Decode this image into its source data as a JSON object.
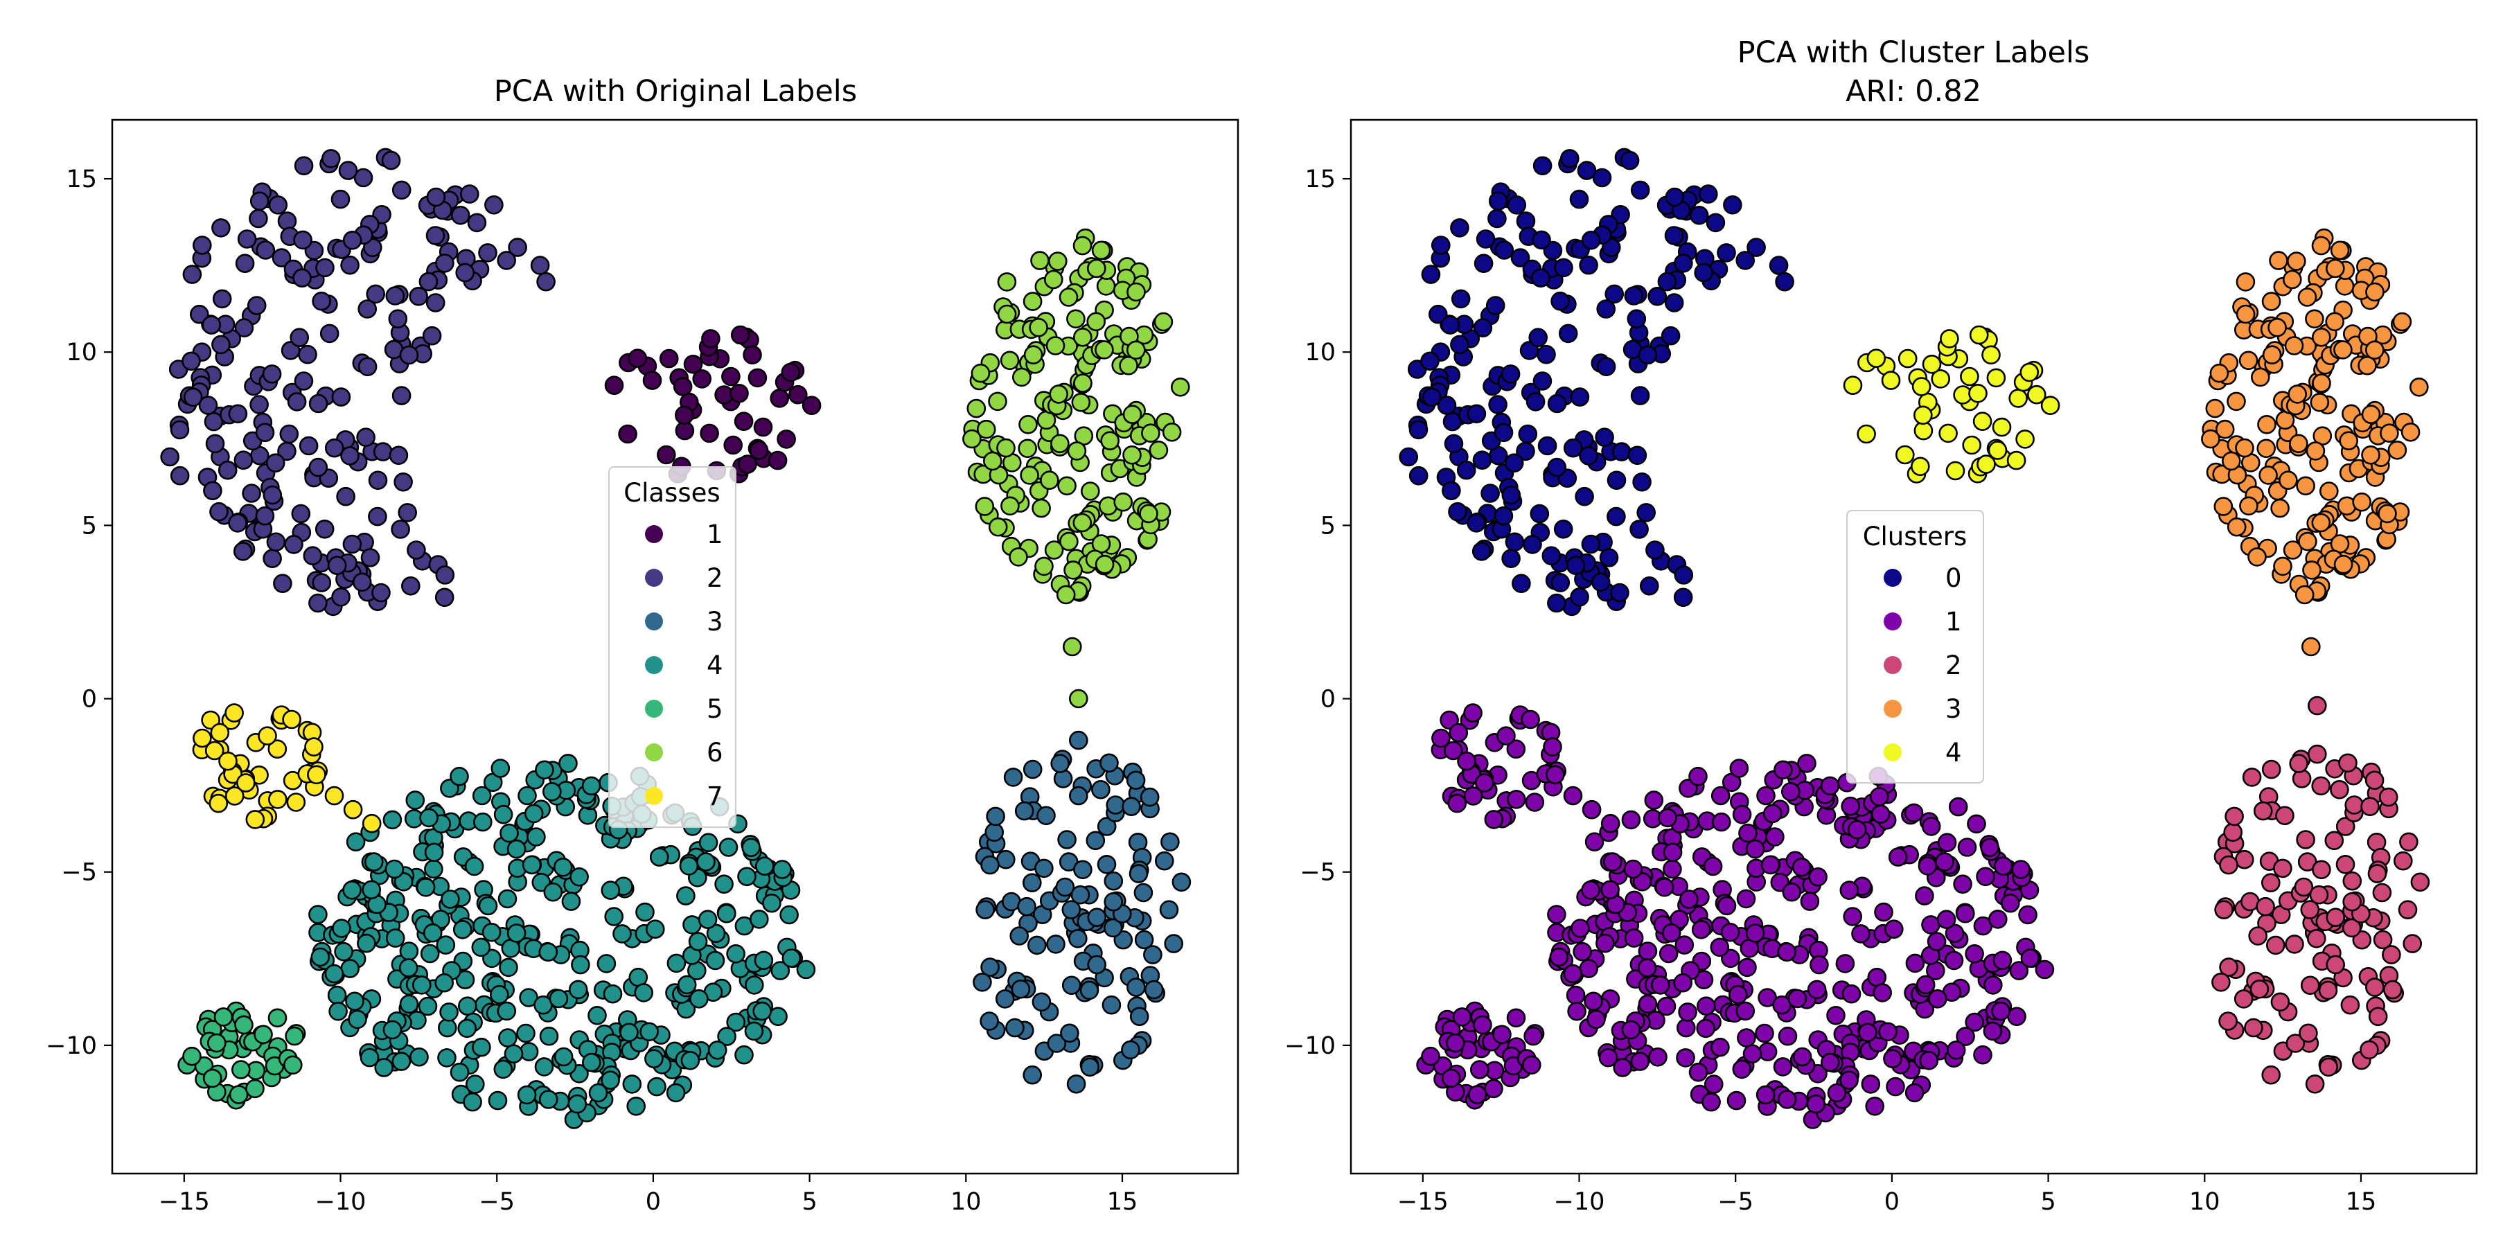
{
  "chart_data": [
    {
      "type": "scatter",
      "title": "PCA with Original Labels",
      "xlabel": "",
      "ylabel": "",
      "xlim": [
        -17.3,
        18.7
      ],
      "ylim": [
        -13.7,
        16.7
      ],
      "xticks": [
        -15,
        -10,
        -5,
        0,
        5,
        10,
        15
      ],
      "yticks": [
        -10,
        -5,
        0,
        5,
        10,
        15
      ],
      "xtick_labels": [
        "−15",
        "−10",
        "−5",
        "0",
        "5",
        "10",
        "15"
      ],
      "ytick_labels": [
        "−10",
        "−5",
        "0",
        "5",
        "10",
        "15"
      ],
      "grid": false,
      "colormap": "viridis",
      "legend": {
        "title": "Classes",
        "placement": "center",
        "entries": [
          {
            "label": "1",
            "color": "#440154"
          },
          {
            "label": "2",
            "color": "#443983"
          },
          {
            "label": "3",
            "color": "#31688e"
          },
          {
            "label": "4",
            "color": "#21918c"
          },
          {
            "label": "5",
            "color": "#35b779"
          },
          {
            "label": "6",
            "color": "#90d743"
          },
          {
            "label": "7",
            "color": "#fde725"
          }
        ]
      },
      "series": [
        {
          "label": "1",
          "color": "#440154",
          "center": [
            1.9,
            8.5
          ],
          "shape": "disk",
          "rx": 3.3,
          "ry": 2.3,
          "count": 50
        },
        {
          "label": "2",
          "color": "#443983",
          "center": [
            -9.0,
            9.0
          ],
          "shape": "crescent",
          "r": 6.8,
          "hole_center": [
            -3.2,
            7.2
          ],
          "hole_r": 4.8,
          "count": 220
        },
        {
          "label": "3",
          "color": "#31688e",
          "center": [
            13.5,
            -6.3
          ],
          "shape": "disk",
          "rx": 3.5,
          "ry": 5.0,
          "count": 130,
          "bridge": [
            [
              13.6,
              -1.2
            ],
            [
              13.6,
              -2.8
            ]
          ]
        },
        {
          "label": "4",
          "color": "#21918c",
          "center": [
            -3.0,
            -7.0
          ],
          "shape": "disk",
          "rx": 8.0,
          "ry": 5.2,
          "count": 420
        },
        {
          "label": "5",
          "color": "#35b779",
          "center": [
            -13.2,
            -10.1
          ],
          "shape": "disk",
          "rx": 1.9,
          "ry": 1.5,
          "count": 45
        },
        {
          "label": "6",
          "color": "#90d743",
          "center": [
            13.5,
            8.2
          ],
          "shape": "disk",
          "rx": 3.4,
          "ry": 5.2,
          "count": 200,
          "bridge": [
            [
              13.2,
              3.0
            ],
            [
              13.4,
              1.5
            ],
            [
              13.6,
              0.0
            ]
          ]
        },
        {
          "label": "7",
          "color": "#fde725",
          "center": [
            -12.8,
            -1.9
          ],
          "shape": "disk",
          "rx": 2.3,
          "ry": 1.7,
          "count": 45,
          "bridge": [
            [
              -10.2,
              -2.8
            ],
            [
              -9.6,
              -3.2
            ],
            [
              -9.0,
              -3.6
            ]
          ]
        }
      ]
    },
    {
      "type": "scatter",
      "title": "PCA with Cluster Labels",
      "subtitle": "ARI: 0.82",
      "xlabel": "",
      "ylabel": "",
      "xlim": [
        -17.3,
        18.7
      ],
      "ylim": [
        -13.7,
        16.7
      ],
      "xticks": [
        -15,
        -10,
        -5,
        0,
        5,
        10,
        15
      ],
      "yticks": [
        -10,
        -5,
        0,
        5,
        10,
        15
      ],
      "xtick_labels": [
        "−15",
        "−10",
        "−5",
        "0",
        "5",
        "10",
        "15"
      ],
      "ytick_labels": [
        "−10",
        "−5",
        "0",
        "5",
        "10",
        "15"
      ],
      "grid": false,
      "colormap": "plasma",
      "legend": {
        "title": "Clusters",
        "placement": "center",
        "entries": [
          {
            "label": "0",
            "color": "#0d0887"
          },
          {
            "label": "1",
            "color": "#7e03a8"
          },
          {
            "label": "2",
            "color": "#cc4778"
          },
          {
            "label": "3",
            "color": "#f89540"
          },
          {
            "label": "4",
            "color": "#f0f921"
          }
        ]
      },
      "series": [
        {
          "label": "4",
          "color": "#f0f921",
          "center": [
            1.9,
            8.5
          ],
          "shape": "disk",
          "rx": 3.3,
          "ry": 2.3,
          "count": 50
        },
        {
          "label": "0",
          "color": "#0d0887",
          "center": [
            -9.0,
            9.0
          ],
          "shape": "crescent",
          "r": 6.8,
          "hole_center": [
            -3.2,
            7.2
          ],
          "hole_r": 4.8,
          "count": 220
        },
        {
          "label": "2",
          "color": "#cc4778",
          "center": [
            13.5,
            -6.3
          ],
          "shape": "disk",
          "rx": 3.5,
          "ry": 5.0,
          "count": 130,
          "bridge": [
            [
              13.6,
              -0.2
            ],
            [
              13.6,
              -1.6
            ]
          ]
        },
        {
          "label": "1",
          "color": "#7e03a8",
          "center": [
            -3.0,
            -7.0
          ],
          "shape": "disk",
          "rx": 8.0,
          "ry": 5.2,
          "count": 420
        },
        {
          "label": "1",
          "color": "#7e03a8",
          "center": [
            -13.2,
            -10.1
          ],
          "shape": "disk",
          "rx": 1.9,
          "ry": 1.5,
          "count": 45
        },
        {
          "label": "3",
          "color": "#f89540",
          "center": [
            13.5,
            8.2
          ],
          "shape": "disk",
          "rx": 3.4,
          "ry": 5.2,
          "count": 200,
          "bridge": [
            [
              13.2,
              3.0
            ],
            [
              13.4,
              1.5
            ]
          ]
        },
        {
          "label": "1",
          "color": "#7e03a8",
          "center": [
            -12.8,
            -1.9
          ],
          "shape": "disk",
          "rx": 2.3,
          "ry": 1.7,
          "count": 45,
          "bridge": [
            [
              -10.2,
              -2.8
            ],
            [
              -9.6,
              -3.2
            ],
            [
              -9.0,
              -3.6
            ]
          ]
        }
      ]
    }
  ]
}
